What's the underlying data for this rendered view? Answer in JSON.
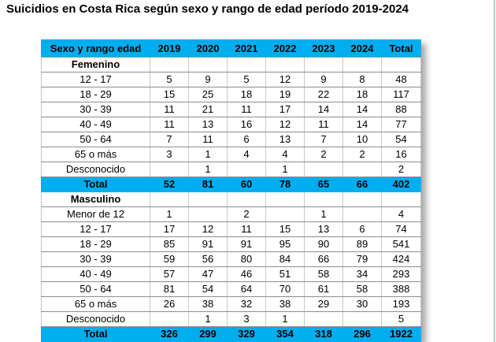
{
  "title": "Suicidios en Costa Rica según sexo y rango de edad período 2019-2024",
  "colors": {
    "accent": "#00AEEF"
  },
  "table": {
    "columns": [
      "Sexo y rango edad",
      "2019",
      "2020",
      "2021",
      "2022",
      "2023",
      "2024",
      "Total"
    ],
    "total_label": "Total",
    "sections": [
      {
        "group": "Femenino",
        "rows": [
          {
            "label": "12 - 17",
            "values": [
              "5",
              "9",
              "5",
              "12",
              "9",
              "8",
              "48"
            ]
          },
          {
            "label": "18 - 29",
            "values": [
              "15",
              "25",
              "18",
              "19",
              "22",
              "18",
              "117"
            ]
          },
          {
            "label": "30 - 39",
            "values": [
              "11",
              "21",
              "11",
              "17",
              "14",
              "14",
              "88"
            ]
          },
          {
            "label": "40 - 49",
            "values": [
              "11",
              "13",
              "16",
              "12",
              "11",
              "14",
              "77"
            ]
          },
          {
            "label": "50 - 64",
            "values": [
              "7",
              "11",
              "6",
              "13",
              "7",
              "10",
              "54"
            ]
          },
          {
            "label": "65 o más",
            "values": [
              "3",
              "1",
              "4",
              "4",
              "2",
              "2",
              "16"
            ]
          },
          {
            "label": "Desconocido",
            "values": [
              "",
              "1",
              "",
              "1",
              "",
              "",
              "2"
            ]
          }
        ],
        "total": [
          "52",
          "81",
          "60",
          "78",
          "65",
          "66",
          "402"
        ]
      },
      {
        "group": "Masculino",
        "rows": [
          {
            "label": "Menor de 12",
            "values": [
              "1",
              "",
              "2",
              "",
              "1",
              "",
              "4"
            ]
          },
          {
            "label": "12 - 17",
            "values": [
              "17",
              "12",
              "11",
              "15",
              "13",
              "6",
              "74"
            ]
          },
          {
            "label": "18 - 29",
            "values": [
              "85",
              "91",
              "91",
              "95",
              "90",
              "89",
              "541"
            ]
          },
          {
            "label": "30 - 39",
            "values": [
              "59",
              "56",
              "80",
              "84",
              "66",
              "79",
              "424"
            ]
          },
          {
            "label": "40 - 49",
            "values": [
              "57",
              "47",
              "46",
              "51",
              "58",
              "34",
              "293"
            ]
          },
          {
            "label": "50 - 64",
            "values": [
              "81",
              "54",
              "64",
              "70",
              "61",
              "58",
              "388"
            ]
          },
          {
            "label": "65 o más",
            "values": [
              "26",
              "38",
              "32",
              "38",
              "29",
              "30",
              "193"
            ]
          },
          {
            "label": "Desconocido",
            "values": [
              "",
              "1",
              "3",
              "1",
              "",
              "",
              "5"
            ]
          }
        ],
        "total": [
          "326",
          "299",
          "329",
          "354",
          "318",
          "296",
          "1922"
        ]
      }
    ]
  }
}
